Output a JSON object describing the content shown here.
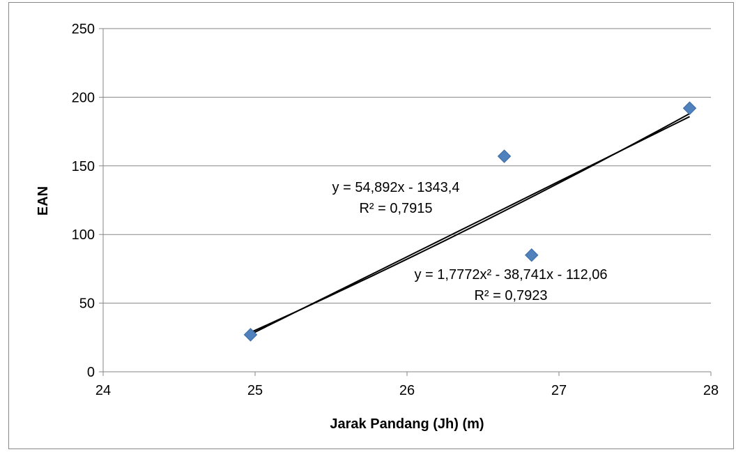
{
  "chart_data": {
    "type": "scatter",
    "title": "",
    "xlabel": "Jarak Pandang (Jh) (m)",
    "ylabel": "EAN",
    "xlim": [
      24,
      28
    ],
    "ylim": [
      0,
      250
    ],
    "xticks": [
      "24",
      "25",
      "26",
      "27",
      "28"
    ],
    "yticks": [
      "0",
      "50",
      "100",
      "150",
      "200",
      "250"
    ],
    "grid": "horizontal",
    "legend": "none",
    "marker_color": "#4f81bd",
    "points": [
      {
        "x": 24.97,
        "y": 27
      },
      {
        "x": 26.64,
        "y": 157
      },
      {
        "x": 26.82,
        "y": 85
      },
      {
        "x": 27.86,
        "y": 192
      }
    ],
    "trendlines": [
      {
        "kind": "linear",
        "coefficients": [
          54.892,
          -1343.4
        ],
        "x_range": [
          24.97,
          27.86
        ],
        "equation": "y = 54,892x - 1343,4",
        "r2": "R² = 0,7915"
      },
      {
        "kind": "polynomial",
        "coefficients": [
          1.7772,
          -38.741,
          -112.06
        ],
        "x_range": [
          24.97,
          27.86
        ],
        "equation": "y = 1,7772x² - 38,741x - 112,06",
        "r2": "R² = 0,7923"
      }
    ]
  }
}
